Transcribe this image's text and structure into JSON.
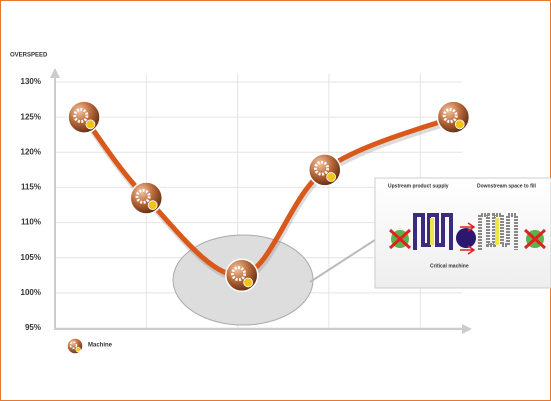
{
  "chart_data": {
    "type": "line",
    "y_label": "OVERSPEED",
    "x": [
      0.7,
      2.2,
      4.5,
      6.5,
      9.6
    ],
    "xlim": [
      0,
      10
    ],
    "xticks": [
      0,
      2.2,
      4.4,
      6.6,
      8.8
    ],
    "series": [
      {
        "name": "Machine",
        "color": "#d9581a",
        "values": [
          125,
          113.5,
          102.5,
          117.5,
          125
        ]
      }
    ],
    "ylim": [
      95,
      130
    ],
    "yticks": [
      {
        "value": 95,
        "label": "95%"
      },
      {
        "value": 100,
        "label": "100%"
      },
      {
        "value": 105,
        "label": "105%"
      },
      {
        "value": 110,
        "label": "110%"
      },
      {
        "value": 115,
        "label": "115%"
      },
      {
        "value": 120,
        "label": "120%"
      },
      {
        "value": 125,
        "label": "125%"
      },
      {
        "value": 130,
        "label": "130%"
      }
    ],
    "grid": true,
    "callout": {
      "upstream": "Upstream product supply",
      "downstream": "Downstream space to fill",
      "critical": "Critical machine"
    }
  }
}
